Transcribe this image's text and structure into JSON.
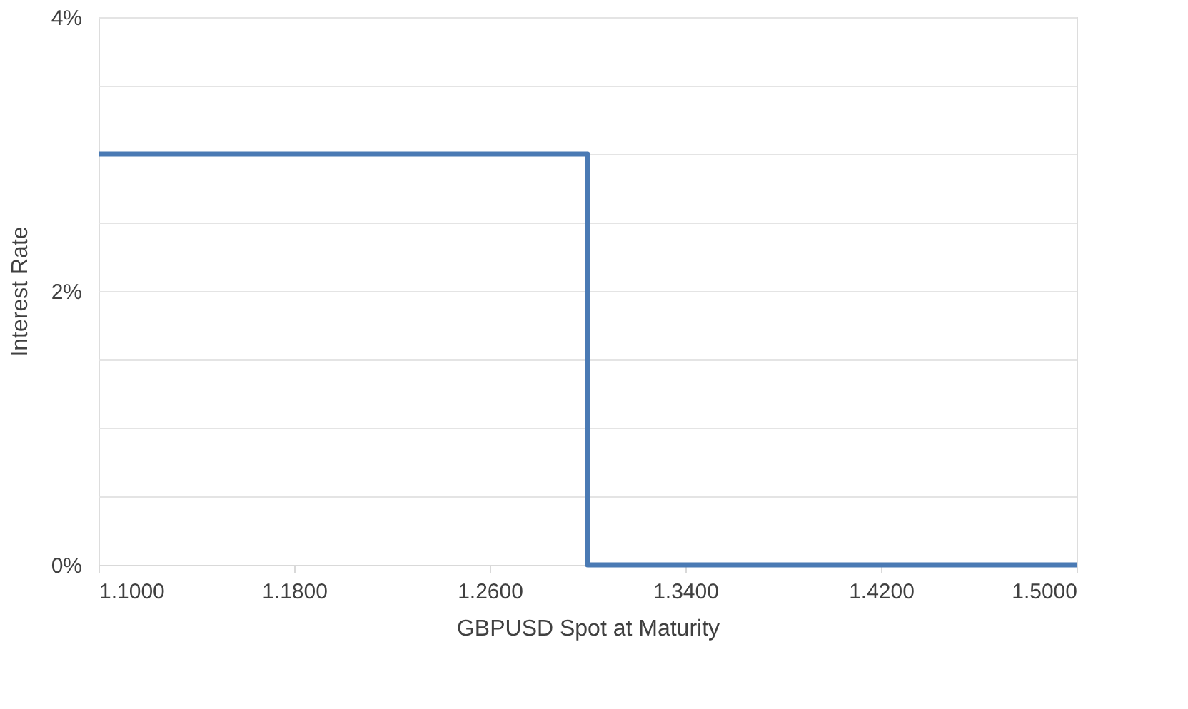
{
  "chart_data": {
    "type": "line",
    "xlabel": "GBPUSD Spot at Maturity",
    "ylabel": "Interest Rate",
    "x": [
      1.1,
      1.3,
      1.3,
      1.5
    ],
    "series": [
      {
        "color": "#4a7ab4",
        "values": [
          3,
          3,
          0,
          0
        ]
      }
    ],
    "xlim": [
      1.1,
      1.5
    ],
    "xticks": [
      {
        "value": 1.1,
        "label": "1.1000"
      },
      {
        "value": 1.18,
        "label": "1.1800"
      },
      {
        "value": 1.26,
        "label": "1.2600"
      },
      {
        "value": 1.34,
        "label": "1.3400"
      },
      {
        "value": 1.42,
        "label": "1.4200"
      },
      {
        "value": 1.5,
        "label": "1.5000"
      }
    ],
    "ylim": [
      0,
      4
    ],
    "yticks": [
      {
        "value": 0,
        "label": "0%"
      },
      {
        "value": 0.5,
        "label": null
      },
      {
        "value": 1,
        "label": null
      },
      {
        "value": 1.5,
        "label": null
      },
      {
        "value": 2,
        "label": "2%"
      },
      {
        "value": 2.5,
        "label": null
      },
      {
        "value": 3,
        "label": null
      },
      {
        "value": 3.5,
        "label": null
      },
      {
        "value": 4,
        "label": "4%"
      }
    ],
    "grid": "y",
    "marker": "none",
    "line_style": "solid"
  }
}
